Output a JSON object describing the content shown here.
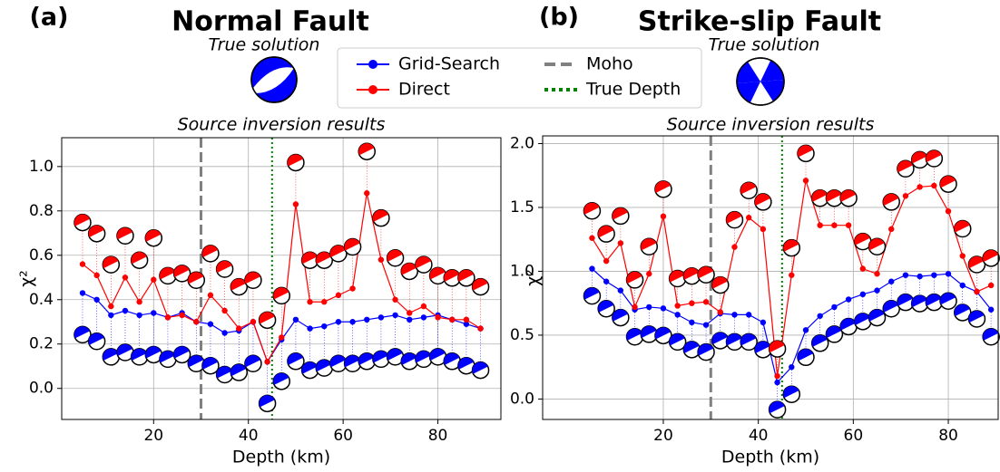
{
  "legend": [
    {
      "label": "Grid-Search",
      "color": "#0000ff",
      "style": "line-marker"
    },
    {
      "label": "Direct",
      "color": "#ff0000",
      "style": "line-marker"
    },
    {
      "label": "Moho",
      "color": "#808080",
      "style": "dashed"
    },
    {
      "label": "True Depth",
      "color": "#008000",
      "style": "dotted"
    }
  ],
  "chart_data": [
    {
      "type": "line",
      "panel_label": "(a)",
      "title": "Normal Fault",
      "subtitle": "True solution",
      "plot_title": "Source inversion results",
      "x_label": "Depth (km)",
      "y_label": "χ²",
      "x": [
        5,
        8,
        11,
        14,
        17,
        20,
        23,
        26,
        29,
        32,
        35,
        38,
        41,
        44,
        47,
        50,
        53,
        56,
        59,
        62,
        65,
        68,
        71,
        74,
        77,
        80,
        83,
        86,
        89
      ],
      "series": [
        {
          "color": "#0000ff",
          "values": [
            0.43,
            0.4,
            0.33,
            0.35,
            0.33,
            0.34,
            0.32,
            0.34,
            0.3,
            0.29,
            0.25,
            0.26,
            0.3,
            0.12,
            0.22,
            0.31,
            0.27,
            0.28,
            0.3,
            0.3,
            0.31,
            0.32,
            0.33,
            0.31,
            0.32,
            0.33,
            0.31,
            0.29,
            0.27
          ]
        },
        {
          "color": "#ff0000",
          "values": [
            0.56,
            0.51,
            0.37,
            0.5,
            0.39,
            0.49,
            0.32,
            0.33,
            0.3,
            0.42,
            0.35,
            0.27,
            0.3,
            0.12,
            0.23,
            0.83,
            0.39,
            0.39,
            0.42,
            0.45,
            0.88,
            0.58,
            0.4,
            0.34,
            0.37,
            0.32,
            0.31,
            0.31,
            0.27
          ]
        }
      ],
      "moho": 30,
      "true_depth": 45,
      "xlim": [
        0.6,
        93.3
      ],
      "ylim": [
        -0.14,
        1.13
      ],
      "xticks": [
        20,
        40,
        60,
        80
      ],
      "yticks": [
        {
          "value": 0,
          "label": "0.0"
        },
        0.2,
        0.4,
        0.6,
        0.8,
        {
          "value": 1,
          "label": "1.0"
        }
      ],
      "grid": true
    },
    {
      "type": "line",
      "panel_label": "(b)",
      "title": "Strike-slip Fault",
      "subtitle": "True solution",
      "plot_title": "Source inversion results",
      "x_label": "Depth (km)",
      "y_label": "χ²",
      "x": [
        5,
        8,
        11,
        14,
        17,
        20,
        23,
        26,
        29,
        32,
        35,
        38,
        41,
        44,
        47,
        50,
        53,
        56,
        59,
        62,
        65,
        68,
        71,
        74,
        77,
        80,
        83,
        86,
        89
      ],
      "series": [
        {
          "color": "#0000ff",
          "values": [
            1.02,
            0.92,
            0.85,
            0.7,
            0.72,
            0.71,
            0.66,
            0.6,
            0.58,
            0.67,
            0.66,
            0.66,
            0.6,
            0.13,
            0.25,
            0.54,
            0.65,
            0.72,
            0.78,
            0.82,
            0.85,
            0.92,
            0.97,
            0.96,
            0.97,
            0.98,
            0.89,
            0.84,
            0.7
          ]
        },
        {
          "color": "#ff0000",
          "values": [
            1.26,
            1.08,
            1.22,
            0.72,
            0.98,
            1.43,
            0.73,
            0.75,
            0.76,
            0.68,
            1.19,
            1.42,
            1.33,
            0.18,
            0.97,
            1.71,
            1.36,
            1.36,
            1.36,
            1.02,
            0.98,
            1.33,
            1.59,
            1.66,
            1.67,
            1.47,
            1.12,
            0.84,
            0.89
          ]
        }
      ],
      "moho": 30,
      "true_depth": 45,
      "xlim": [
        -5.4,
        90.5
      ],
      "ylim": [
        -0.16,
        2.06
      ],
      "xticks": [
        20,
        40,
        60,
        80
      ],
      "yticks": [
        {
          "value": 0,
          "label": "0.0"
        },
        0.5,
        {
          "value": 1,
          "label": "1.0"
        },
        1.5,
        {
          "value": 2,
          "label": "2.0"
        }
      ],
      "grid": true
    }
  ]
}
